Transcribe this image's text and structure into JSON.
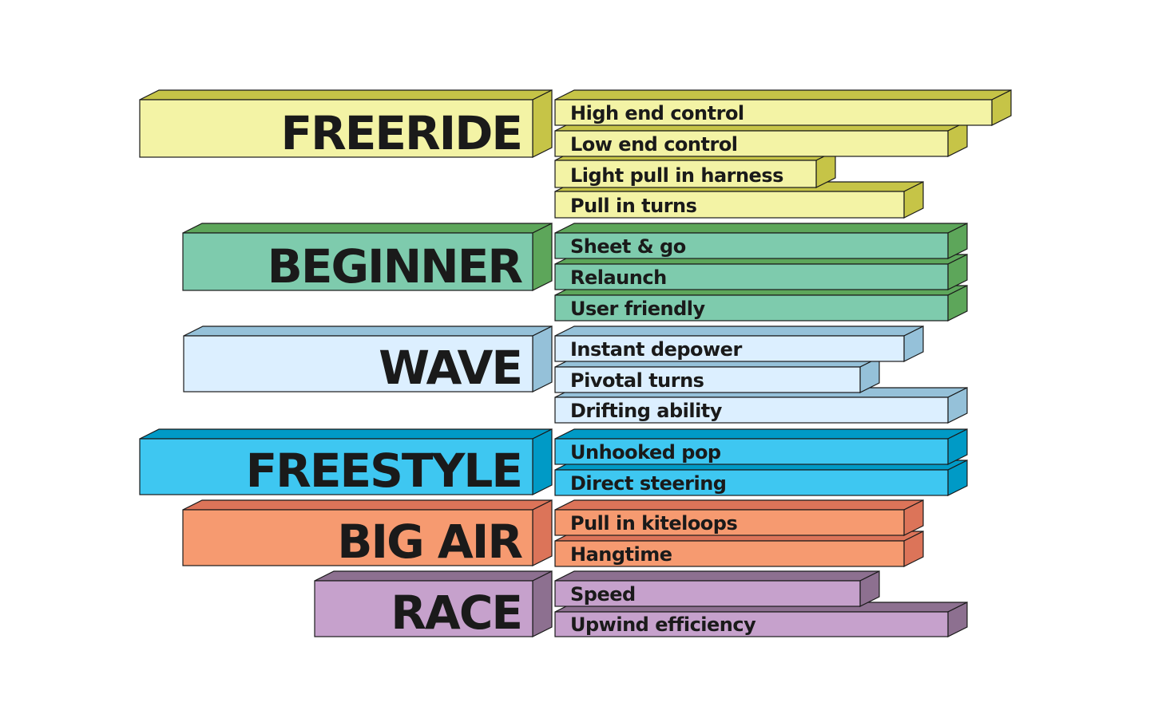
{
  "categories": [
    {
      "name": "FREERIDE",
      "colors": {
        "front": "#f3f3a5",
        "top": "#c6c447",
        "side": "#c6c447"
      },
      "features": [
        "High end control",
        "Low end control",
        "Light pull in harness",
        "Pull in turns"
      ]
    },
    {
      "name": "BEGINNER",
      "colors": {
        "front": "#7ecbad",
        "top": "#5da65a",
        "side": "#5da65a"
      },
      "features": [
        "Sheet & go",
        "Relaunch",
        "User friendly"
      ]
    },
    {
      "name": "WAVE",
      "colors": {
        "front": "#dcefff",
        "top": "#95c1d9",
        "side": "#95c1d9"
      },
      "features": [
        "Instant depower",
        "Pivotal turns",
        "Drifting ability"
      ]
    },
    {
      "name": "FREESTYLE",
      "colors": {
        "front": "#3ec7f1",
        "top": "#009ac6",
        "side": "#009ac6"
      },
      "features": [
        "Unhooked pop",
        "Direct steering"
      ]
    },
    {
      "name": "BIG AIR",
      "colors": {
        "front": "#f69a70",
        "top": "#dc7459",
        "side": "#dc7459"
      },
      "features": [
        "Pull in kiteloops",
        "Hangtime"
      ]
    },
    {
      "name": "RACE",
      "colors": {
        "front": "#c6a1cc",
        "top": "#8d7090",
        "side": "#8d7090"
      },
      "features": [
        "Speed",
        "Upwind efficiency"
      ]
    }
  ]
}
